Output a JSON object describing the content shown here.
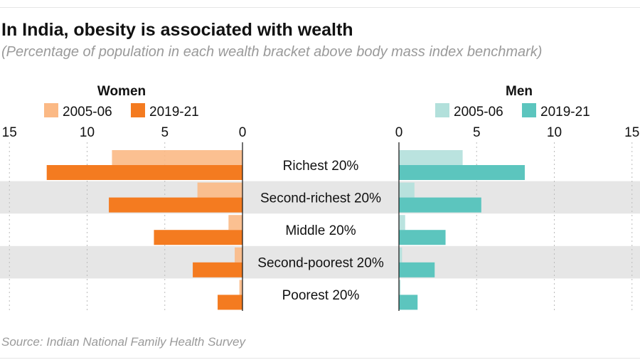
{
  "title": "In India, obesity is associated with wealth",
  "subtitle": "(Percentage of population in each wealth bracket above body mass index benchmark)",
  "source": "Source: Indian National Family Health Survey",
  "chart_data": [
    {
      "type": "bar",
      "orientation": "horizontal",
      "title": "Women",
      "direction": "leftward",
      "categories": [
        "Richest 20%",
        "Second-richest 20%",
        "Middle 20%",
        "Second-poorest 20%",
        "Poorest 20%"
      ],
      "series": [
        {
          "name": "2005-06",
          "color": "#fbb985",
          "values": [
            8.4,
            2.9,
            0.9,
            0.5,
            0.2
          ]
        },
        {
          "name": "2019-21",
          "color": "#f47b20",
          "values": [
            12.6,
            8.6,
            5.7,
            3.2,
            1.6
          ]
        }
      ],
      "xlim": [
        0,
        15
      ],
      "ticks": [
        15,
        10,
        5,
        0
      ],
      "grid": true,
      "legend": "top"
    },
    {
      "type": "bar",
      "orientation": "horizontal",
      "title": "Men",
      "direction": "rightward",
      "categories": [
        "Richest 20%",
        "Second-richest 20%",
        "Middle 20%",
        "Second-poorest 20%",
        "Poorest 20%"
      ],
      "series": [
        {
          "name": "2005-06",
          "color": "#b2e0db",
          "values": [
            4.1,
            1.0,
            0.4,
            0.2,
            0.1
          ]
        },
        {
          "name": "2019-21",
          "color": "#5cc5be",
          "values": [
            8.1,
            5.3,
            3.0,
            2.3,
            1.2
          ]
        }
      ],
      "xlim": [
        0,
        15
      ],
      "ticks": [
        0,
        5,
        10,
        15
      ],
      "grid": true,
      "legend": "top"
    }
  ],
  "band_color": "#e6e6e6"
}
